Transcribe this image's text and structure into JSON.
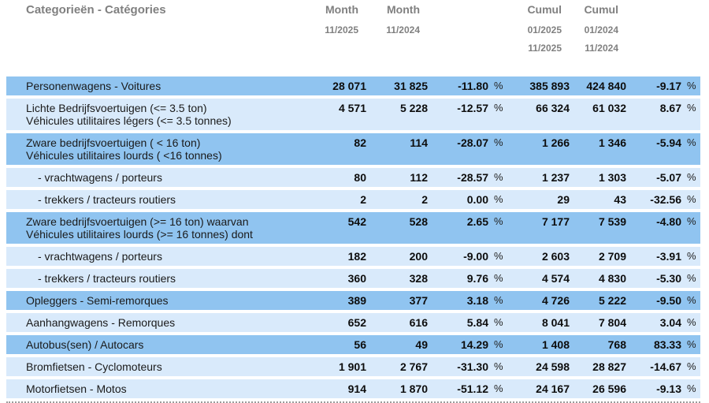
{
  "header": {
    "category_title": "Categorieën - Catégories",
    "columns": [
      {
        "title": "Month",
        "lines": [
          "11/2025"
        ]
      },
      {
        "title": "Month",
        "lines": [
          "11/2024"
        ]
      },
      {
        "title": "Cumul",
        "lines": [
          "01/2025",
          "11/2025"
        ]
      },
      {
        "title": "Cumul",
        "lines": [
          "01/2024",
          "11/2024"
        ]
      }
    ]
  },
  "table": {
    "percent_sign": "%",
    "rows": [
      {
        "labels": [
          "Personenwagens - Voitures"
        ],
        "tone": "dark",
        "indent": false,
        "values": {
          "month_2025": "28 071",
          "month_2024": "31 825",
          "month_change_pct": "-11.80",
          "cumul_2025": "385 893",
          "cumul_2024": "424 840",
          "cumul_change_pct": "-9.17"
        }
      },
      {
        "labels": [
          "Lichte Bedrijfsvoertuigen (<= 3.5 ton)",
          "Véhicules utilitaires légers (<= 3.5 tonnes)"
        ],
        "tone": "light",
        "indent": false,
        "values": {
          "month_2025": "4 571",
          "month_2024": "5 228",
          "month_change_pct": "-12.57",
          "cumul_2025": "66 324",
          "cumul_2024": "61 032",
          "cumul_change_pct": "8.67"
        }
      },
      {
        "labels": [
          "Zware bedrijfsvoertuigen ( < 16 ton)",
          "Véhicules utilitaires lourds ( <16 tonnes)"
        ],
        "tone": "dark",
        "indent": false,
        "values": {
          "month_2025": "82",
          "month_2024": "114",
          "month_change_pct": "-28.07",
          "cumul_2025": "1 266",
          "cumul_2024": "1 346",
          "cumul_change_pct": "-5.94"
        }
      },
      {
        "labels": [
          "- vrachtwagens / porteurs"
        ],
        "tone": "light",
        "indent": true,
        "values": {
          "month_2025": "80",
          "month_2024": "112",
          "month_change_pct": "-28.57",
          "cumul_2025": "1 237",
          "cumul_2024": "1 303",
          "cumul_change_pct": "-5.07"
        }
      },
      {
        "labels": [
          "- trekkers / tracteurs routiers"
        ],
        "tone": "light",
        "indent": true,
        "values": {
          "month_2025": "2",
          "month_2024": "2",
          "month_change_pct": "0.00",
          "cumul_2025": "29",
          "cumul_2024": "43",
          "cumul_change_pct": "-32.56"
        }
      },
      {
        "labels": [
          "Zware bedrijfsvoertuigen (>= 16 ton) waarvan",
          "Véhicules utilitaires lourds (>= 16 tonnes) dont"
        ],
        "tone": "dark",
        "indent": false,
        "values": {
          "month_2025": "542",
          "month_2024": "528",
          "month_change_pct": "2.65",
          "cumul_2025": "7 177",
          "cumul_2024": "7 539",
          "cumul_change_pct": "-4.80"
        }
      },
      {
        "labels": [
          "- vrachtwagens / porteurs"
        ],
        "tone": "light",
        "indent": true,
        "values": {
          "month_2025": "182",
          "month_2024": "200",
          "month_change_pct": "-9.00",
          "cumul_2025": "2 603",
          "cumul_2024": "2 709",
          "cumul_change_pct": "-3.91"
        }
      },
      {
        "labels": [
          "- trekkers / tracteurs routiers"
        ],
        "tone": "light",
        "indent": true,
        "values": {
          "month_2025": "360",
          "month_2024": "328",
          "month_change_pct": "9.76",
          "cumul_2025": "4 574",
          "cumul_2024": "4 830",
          "cumul_change_pct": "-5.30"
        }
      },
      {
        "labels": [
          "Opleggers - Semi-remorques"
        ],
        "tone": "dark",
        "indent": false,
        "values": {
          "month_2025": "389",
          "month_2024": "377",
          "month_change_pct": "3.18",
          "cumul_2025": "4 726",
          "cumul_2024": "5 222",
          "cumul_change_pct": "-9.50"
        }
      },
      {
        "labels": [
          "Aanhangwagens - Remorques"
        ],
        "tone": "light",
        "indent": false,
        "values": {
          "month_2025": "652",
          "month_2024": "616",
          "month_change_pct": "5.84",
          "cumul_2025": "8 041",
          "cumul_2024": "7 804",
          "cumul_change_pct": "3.04"
        }
      },
      {
        "labels": [
          "Autobus(sen) / Autocars"
        ],
        "tone": "dark",
        "indent": false,
        "values": {
          "month_2025": "56",
          "month_2024": "49",
          "month_change_pct": "14.29",
          "cumul_2025": "1 408",
          "cumul_2024": "768",
          "cumul_change_pct": "83.33"
        }
      },
      {
        "labels": [
          "Bromfietsen - Cyclomoteurs"
        ],
        "tone": "light",
        "indent": false,
        "values": {
          "month_2025": "1 901",
          "month_2024": "2 767",
          "month_change_pct": "-31.30",
          "cumul_2025": "24 598",
          "cumul_2024": "28 827",
          "cumul_change_pct": "-14.67"
        }
      },
      {
        "labels": [
          "Motorfietsen - Motos"
        ],
        "tone": "light",
        "indent": false,
        "values": {
          "month_2025": "914",
          "month_2024": "1 870",
          "month_change_pct": "-51.12",
          "cumul_2025": "24 167",
          "cumul_2024": "26 596",
          "cumul_change_pct": "-9.13"
        }
      }
    ]
  },
  "colors": {
    "row_dark": "#90C4F0",
    "row_light": "#D9EAFB",
    "header_text": "#808080",
    "body_text": "#1A1A1A"
  }
}
